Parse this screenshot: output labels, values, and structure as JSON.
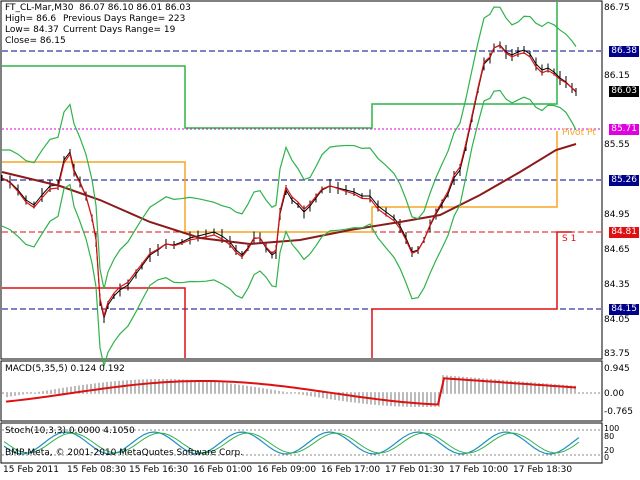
{
  "header": {
    "symbol_line": "FT_CL-Mar,M30  86.07 86.10 86.01 86.03",
    "high": "High= 86.6",
    "low": "Low= 84.37",
    "close": "Close= 86.15",
    "prev_range": "Previous Days Range= 223",
    "curr_range": "Current Days Range= 19"
  },
  "price_axis": [
    "86.75",
    "86.15",
    "85.55",
    "84.95",
    "84.65",
    "84.35",
    "84.05",
    "83.75"
  ],
  "price_tags": {
    "p1": "86.38",
    "p2": "86.03",
    "p3": "85.71",
    "p4": "85.26",
    "p5": "84.81",
    "p6": "84.15"
  },
  "chart_labels": {
    "pivot": "Pivot Pt",
    "s1": "S 1"
  },
  "macd": {
    "title": "MACD(5,35,5) 0.124 0.192",
    "axis": [
      "0.945",
      "0.00",
      "-0.765"
    ]
  },
  "stoch": {
    "title": "Stoch(10,3,3) 0.0000 4.1050",
    "axis": [
      "100",
      "80",
      "20",
      "0"
    ]
  },
  "copyright": "BMP-Meta, © 2001-2010 MetaQuotes Software Corp.",
  "time_axis": [
    "15 Feb 2011",
    "15 Feb 08:30",
    "15 Feb 16:30",
    "16 Feb 01:00",
    "16 Feb 09:00",
    "16 Feb 17:00",
    "17 Feb 01:30",
    "17 Feb 10:00",
    "17 Feb 18:30"
  ],
  "colors": {
    "green": "#2fb34a",
    "orange": "#f5a623",
    "red": "#d11",
    "brown": "#8b1a1a",
    "candle": "#000000",
    "pivot_label": "#f5a623",
    "magenta": "#e000e0",
    "navy": "#00008b"
  }
}
